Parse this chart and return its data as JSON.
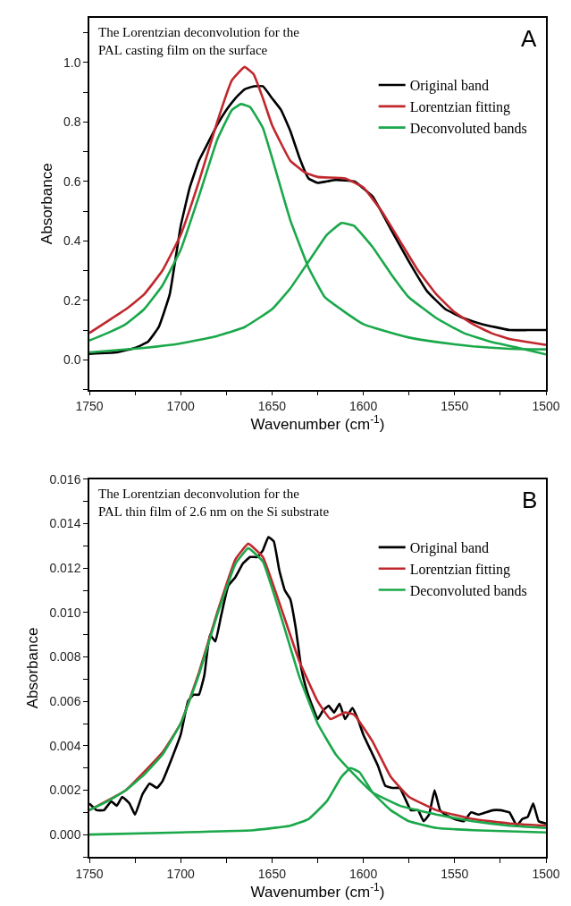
{
  "chart_data": [
    {
      "type": "line",
      "xlabel": "Wavenumber (cm$^{-1}$)",
      "ylabel": "Absorbance",
      "annotations": [
        "The Lorentzian deconvolution for the\nPAL casting film on the surface",
        "A"
      ],
      "xlim": [
        1750,
        1500
      ],
      "ylim": [
        -0.1,
        1.15
      ],
      "xticks": [
        1750,
        {
          "value": 1725,
          "label": null
        },
        1700,
        {
          "value": 1675,
          "label": null
        },
        1650,
        {
          "value": 1625,
          "label": null
        },
        1600,
        {
          "value": 1575,
          "label": null
        },
        1550,
        {
          "value": 1525,
          "label": null
        },
        1500
      ],
      "yticks": [
        {
          "value": -0.1,
          "label": null
        },
        {
          "value": 0,
          "label": "0.0"
        },
        {
          "value": 0.1,
          "label": null
        },
        {
          "value": 0.2,
          "label": "0.2"
        },
        {
          "value": 0.3,
          "label": null
        },
        {
          "value": 0.4,
          "label": "0.4"
        },
        {
          "value": 0.5,
          "label": null
        },
        {
          "value": 0.6,
          "label": "0.6"
        },
        {
          "value": 0.7,
          "label": null
        },
        {
          "value": 0.8,
          "label": "0.8"
        },
        {
          "value": 0.9,
          "label": null
        },
        {
          "value": 1.0,
          "label": "1.0"
        },
        {
          "value": 1.1,
          "label": null
        }
      ],
      "legend": "top right",
      "marker": "none",
      "line_style": "solid",
      "series": [
        {
          "name": "Original band",
          "color": "#000000",
          "x": [
            1750,
            1735,
            1725,
            1718,
            1712,
            1706,
            1700,
            1695,
            1690,
            1685,
            1680,
            1675,
            1670,
            1665,
            1660,
            1655,
            1650,
            1645,
            1640,
            1635,
            1630,
            1625,
            1620,
            1615,
            1605,
            1595,
            1585,
            1575,
            1565,
            1555,
            1545,
            1535,
            1520,
            1510,
            1500
          ],
          "values": [
            0.02,
            0.025,
            0.04,
            0.06,
            0.11,
            0.22,
            0.45,
            0.58,
            0.67,
            0.73,
            0.79,
            0.84,
            0.88,
            0.91,
            0.92,
            0.92,
            0.88,
            0.84,
            0.77,
            0.68,
            0.61,
            0.595,
            0.6,
            0.605,
            0.6,
            0.55,
            0.44,
            0.33,
            0.23,
            0.17,
            0.14,
            0.12,
            0.1,
            0.1,
            0.1
          ]
        },
        {
          "name": "Lorentzian fitting",
          "color": "#c0282d",
          "x": [
            1750,
            1740,
            1730,
            1720,
            1710,
            1700,
            1690,
            1680,
            1672,
            1665,
            1660,
            1655,
            1650,
            1640,
            1632,
            1625,
            1610,
            1600,
            1590,
            1580,
            1570,
            1560,
            1550,
            1540,
            1530,
            1520,
            1500
          ],
          "values": [
            0.09,
            0.13,
            0.17,
            0.22,
            0.3,
            0.42,
            0.6,
            0.8,
            0.94,
            0.985,
            0.96,
            0.88,
            0.79,
            0.67,
            0.63,
            0.615,
            0.61,
            0.58,
            0.5,
            0.4,
            0.3,
            0.22,
            0.16,
            0.12,
            0.09,
            0.07,
            0.05
          ]
        },
        {
          "name": "Deconvoluted bands",
          "color": "#1aa84a",
          "x": [
            1750,
            1740,
            1730,
            1720,
            1710,
            1700,
            1690,
            1680,
            1672,
            1667,
            1662,
            1655,
            1650,
            1640,
            1630,
            1621,
            1610,
            1600,
            1590,
            1575,
            1560,
            1540,
            1520,
            1500
          ],
          "values": [
            0.065,
            0.09,
            0.12,
            0.17,
            0.25,
            0.37,
            0.55,
            0.74,
            0.84,
            0.86,
            0.85,
            0.78,
            0.68,
            0.47,
            0.31,
            0.21,
            0.16,
            0.12,
            0.1,
            0.075,
            0.06,
            0.045,
            0.037,
            0.035
          ]
        },
        {
          "color": "#1aa84a",
          "x": [
            1750,
            1720,
            1700,
            1680,
            1665,
            1650,
            1640,
            1630,
            1620,
            1612,
            1605,
            1595,
            1585,
            1575,
            1560,
            1545,
            1530,
            1515,
            1500
          ],
          "values": [
            0.025,
            0.04,
            0.055,
            0.08,
            0.11,
            0.17,
            0.24,
            0.33,
            0.42,
            0.46,
            0.45,
            0.38,
            0.29,
            0.21,
            0.14,
            0.09,
            0.06,
            0.04,
            0.018
          ]
        }
      ]
    },
    {
      "type": "line",
      "xlabel": "Wavenumber (cm$^{-1}$)",
      "ylabel": "Absorbance",
      "annotations": [
        "The Lorentzian deconvolution for the\nPAL thin film of 2.6 nm on the Si substrate",
        "B"
      ],
      "xlim": [
        1750,
        1500
      ],
      "ylim": [
        -0.001,
        0.016
      ],
      "xticks": [
        1750,
        {
          "value": 1725,
          "label": null
        },
        1700,
        {
          "value": 1675,
          "label": null
        },
        1650,
        {
          "value": 1625,
          "label": null
        },
        1600,
        {
          "value": 1575,
          "label": null
        },
        1550,
        {
          "value": 1525,
          "label": null
        },
        1500
      ],
      "yticks": [
        {
          "value": -0.001,
          "label": null
        },
        {
          "value": 0,
          "label": "0.000"
        },
        {
          "value": 0.001,
          "label": null
        },
        {
          "value": 0.002,
          "label": "0.002"
        },
        {
          "value": 0.003,
          "label": null
        },
        {
          "value": 0.004,
          "label": "0.004"
        },
        {
          "value": 0.005,
          "label": null
        },
        {
          "value": 0.006,
          "label": "0.006"
        },
        {
          "value": 0.007,
          "label": null
        },
        {
          "value": 0.008,
          "label": "0.008"
        },
        {
          "value": 0.009,
          "label": null
        },
        {
          "value": 0.01,
          "label": "0.010"
        },
        {
          "value": 0.011,
          "label": null
        },
        {
          "value": 0.012,
          "label": "0.012"
        },
        {
          "value": 0.013,
          "label": null
        },
        {
          "value": 0.014,
          "label": "0.014"
        },
        {
          "value": 0.015,
          "label": null
        },
        {
          "value": 0.016,
          "label": "0.016"
        }
      ],
      "legend": "top right",
      "marker": "none",
      "line_style": "solid",
      "series": [
        {
          "name": "Original band",
          "color": "#000000",
          "x": [
            1750,
            1746,
            1742,
            1738,
            1735,
            1732,
            1728,
            1725,
            1721,
            1717,
            1713,
            1710,
            1705,
            1700,
            1696,
            1693,
            1690,
            1687,
            1684,
            1681,
            1678,
            1674,
            1670,
            1666,
            1662,
            1658,
            1655,
            1652,
            1649,
            1646,
            1643,
            1640,
            1637,
            1634,
            1631,
            1628,
            1625,
            1622,
            1619,
            1616,
            1613,
            1610,
            1606,
            1603,
            1600,
            1596,
            1592,
            1588,
            1584,
            1580,
            1577,
            1574,
            1570,
            1567,
            1564,
            1561,
            1558,
            1555,
            1550,
            1545,
            1541,
            1537,
            1533,
            1529,
            1525,
            1520,
            1516,
            1513,
            1510,
            1507,
            1504,
            1500
          ],
          "values": [
            0.0014,
            0.0011,
            0.0011,
            0.0015,
            0.0013,
            0.0017,
            0.0014,
            0.0009,
            0.0018,
            0.0023,
            0.0021,
            0.0024,
            0.0034,
            0.0045,
            0.006,
            0.0063,
            0.0063,
            0.0072,
            0.009,
            0.0087,
            0.0098,
            0.0112,
            0.0116,
            0.0122,
            0.0125,
            0.0125,
            0.0128,
            0.0134,
            0.0132,
            0.0119,
            0.011,
            0.0106,
            0.0093,
            0.0075,
            0.0065,
            0.0058,
            0.0052,
            0.0056,
            0.0058,
            0.0055,
            0.0059,
            0.0052,
            0.0057,
            0.0052,
            0.0045,
            0.0038,
            0.0031,
            0.0022,
            0.0021,
            0.0021,
            0.0016,
            0.0011,
            0.0011,
            0.0006,
            0.0009,
            0.002,
            0.0011,
            0.0009,
            0.0007,
            0.0006,
            0.001,
            0.0009,
            0.001,
            0.0011,
            0.0011,
            0.001,
            0.0004,
            0.0007,
            0.0008,
            0.0014,
            0.0006,
            0.0005
          ]
        },
        {
          "name": "Lorentzian fitting",
          "color": "#c0282d",
          "x": [
            1750,
            1730,
            1710,
            1700,
            1690,
            1680,
            1670,
            1663,
            1655,
            1645,
            1635,
            1625,
            1618,
            1610,
            1605,
            1595,
            1585,
            1575,
            1560,
            1540,
            1520,
            1500
          ],
          "values": [
            0.0011,
            0.002,
            0.0037,
            0.005,
            0.0073,
            0.01,
            0.0124,
            0.0131,
            0.0125,
            0.0102,
            0.0078,
            0.006,
            0.0052,
            0.0055,
            0.0054,
            0.0042,
            0.0026,
            0.0017,
            0.0011,
            0.0007,
            0.0005,
            0.0004
          ]
        },
        {
          "name": "Deconvoluted bands",
          "color": "#1aa84a",
          "x": [
            1750,
            1740,
            1730,
            1720,
            1710,
            1700,
            1690,
            1680,
            1670,
            1663,
            1655,
            1645,
            1635,
            1625,
            1615,
            1605,
            1595,
            1580,
            1560,
            1540,
            1520,
            1500
          ],
          "values": [
            0.0011,
            0.0015,
            0.002,
            0.0027,
            0.0036,
            0.005,
            0.0072,
            0.0099,
            0.0122,
            0.0129,
            0.0123,
            0.0098,
            0.0071,
            0.005,
            0.0036,
            0.0027,
            0.0019,
            0.0013,
            0.0009,
            0.0006,
            0.0004,
            0.0003
          ]
        },
        {
          "color": "#1aa84a",
          "x": [
            1750,
            1700,
            1660,
            1640,
            1630,
            1620,
            1612,
            1607,
            1602,
            1595,
            1585,
            1575,
            1560,
            1540,
            1500
          ],
          "values": [
            0.0,
            0.0001,
            0.0002,
            0.0004,
            0.0007,
            0.0015,
            0.0026,
            0.003,
            0.0028,
            0.0019,
            0.0011,
            0.0006,
            0.0003,
            0.0002,
            0.0001
          ]
        }
      ]
    }
  ]
}
